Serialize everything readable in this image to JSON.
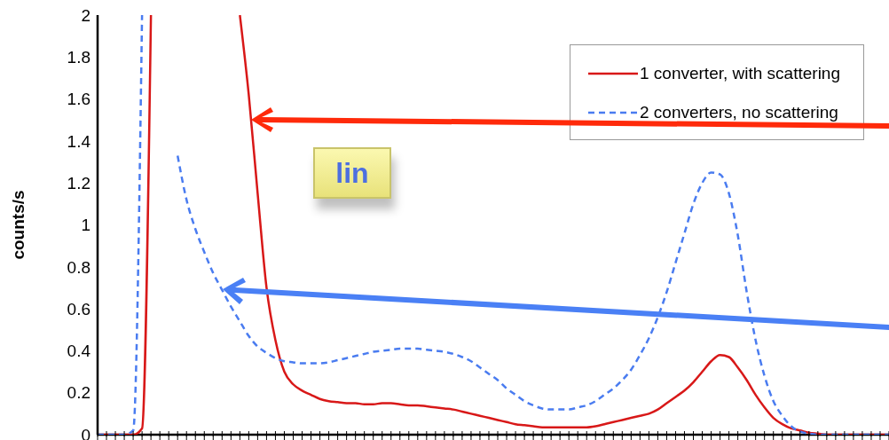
{
  "chart_data": {
    "type": "line",
    "ylabel": "counts/s",
    "annotations": [
      "lin"
    ],
    "categories": [
      null,
      null,
      null,
      null,
      null,
      null,
      null,
      null,
      null,
      null,
      null,
      null,
      null,
      null,
      null,
      null,
      null,
      null,
      null,
      null,
      null,
      null,
      null,
      null,
      null,
      null,
      null,
      null,
      null,
      null,
      null,
      null,
      null,
      null,
      null,
      null,
      null,
      null,
      null,
      null,
      null,
      null,
      null,
      null,
      null,
      null,
      null,
      null,
      null,
      null,
      null,
      null,
      null,
      null,
      null,
      null,
      null,
      null,
      null,
      null,
      null,
      null,
      null,
      null,
      null,
      null,
      null,
      null,
      null,
      null,
      null,
      null,
      null,
      null,
      null,
      null,
      null,
      null,
      null,
      null,
      null,
      null,
      null,
      null,
      null,
      null,
      null,
      null,
      null,
      null
    ],
    "series": [
      {
        "name": "1 converter, with scattering",
        "color": "#d81818",
        "line_style": "solid",
        "values": [
          null,
          null,
          null,
          null,
          null,
          null,
          null,
          null,
          null,
          null,
          null,
          null,
          null,
          null,
          null,
          null,
          2,
          1.62,
          1.15,
          0.7,
          0.45,
          0.3,
          0.24,
          0.21,
          0.19,
          0.17,
          0.16,
          0.155,
          0.15,
          0.15,
          0.145,
          0.145,
          0.15,
          0.15,
          0.145,
          0.14,
          0.14,
          0.135,
          0.13,
          0.125,
          0.12,
          0.11,
          0.1,
          0.09,
          0.08,
          0.07,
          0.06,
          0.05,
          0.045,
          0.04,
          0.035,
          0.035,
          0.035,
          0.035,
          0.035,
          0.035,
          0.04,
          0.05,
          0.06,
          0.07,
          0.08,
          0.09,
          0.1,
          0.12,
          0.15,
          0.18,
          0.21,
          0.25,
          0.3,
          0.35,
          0.38,
          0.37,
          0.32,
          0.26,
          0.19,
          0.13,
          0.08,
          0.05,
          0.03,
          0.02,
          0.01,
          0.005,
          0,
          0,
          0,
          0,
          0,
          0,
          0,
          0
        ]
      },
      {
        "name": "2 converters, no scattering",
        "color": "#4a7cf0",
        "line_style": "dashed",
        "values": [
          null,
          null,
          null,
          null,
          null,
          null,
          null,
          null,
          null,
          1.33,
          1.12,
          0.98,
          0.87,
          0.77,
          0.69,
          0.61,
          0.54,
          0.47,
          0.42,
          0.39,
          0.365,
          0.35,
          0.345,
          0.34,
          0.34,
          0.34,
          0.345,
          0.355,
          0.365,
          0.375,
          0.385,
          0.395,
          0.4,
          0.405,
          0.41,
          0.41,
          0.41,
          0.405,
          0.4,
          0.395,
          0.385,
          0.37,
          0.35,
          0.32,
          0.29,
          0.26,
          0.22,
          0.19,
          0.16,
          0.14,
          0.125,
          0.12,
          0.12,
          0.12,
          0.13,
          0.14,
          0.16,
          0.19,
          0.22,
          0.26,
          0.31,
          0.38,
          0.46,
          0.56,
          0.68,
          0.82,
          0.96,
          1.1,
          1.2,
          1.25,
          1.24,
          1.15,
          0.95,
          0.68,
          0.45,
          0.28,
          0.16,
          0.09,
          0.04,
          0.015,
          0.005,
          0,
          0,
          0,
          0,
          0,
          0,
          0,
          0,
          0
        ]
      },
      {
        "color": "#d81818",
        "line_style": "solid",
        "values": [
          0,
          0,
          0,
          0,
          0,
          0.03,
          2,
          null,
          null,
          null,
          null,
          null,
          null,
          null,
          null,
          null,
          null,
          null,
          null,
          null,
          null,
          null,
          null,
          null,
          null,
          null,
          null,
          null,
          null,
          null,
          null,
          null,
          null,
          null,
          null,
          null,
          null,
          null,
          null,
          null,
          null,
          null,
          null,
          null,
          null,
          null,
          null,
          null,
          null,
          null,
          null,
          null,
          null,
          null,
          null,
          null,
          null,
          null,
          null,
          null,
          null,
          null,
          null,
          null,
          null,
          null,
          null,
          null,
          null,
          null,
          null,
          null,
          null,
          null,
          null,
          null,
          null,
          null,
          null,
          null,
          null,
          null,
          null,
          null,
          null,
          null,
          null,
          null,
          null,
          null
        ]
      },
      {
        "color": "#4a7cf0",
        "line_style": "dashed",
        "values": [
          0,
          0,
          0,
          0,
          0.02,
          2,
          null,
          null,
          null,
          null,
          null,
          null,
          null,
          null,
          null,
          null,
          null,
          null,
          null,
          null,
          null,
          null,
          null,
          null,
          null,
          null,
          null,
          null,
          null,
          null,
          null,
          null,
          null,
          null,
          null,
          null,
          null,
          null,
          null,
          null,
          null,
          null,
          null,
          null,
          null,
          null,
          null,
          null,
          null,
          null,
          null,
          null,
          null,
          null,
          null,
          null,
          null,
          null,
          null,
          null,
          null,
          null,
          null,
          null,
          null,
          null,
          null,
          null,
          null,
          null,
          null,
          null,
          null,
          null,
          null,
          null,
          null,
          null,
          null,
          null,
          null,
          null,
          null,
          null,
          null,
          null,
          null,
          null,
          null,
          null
        ]
      }
    ],
    "ylim": [
      0,
      2
    ],
    "yticks": [
      0,
      0.2,
      0.4,
      0.6,
      0.8,
      1,
      1.2,
      1.4,
      1.6,
      1.8,
      2
    ],
    "grid": false,
    "legend": "top right",
    "marker": "none",
    "tick_labels": "y"
  }
}
